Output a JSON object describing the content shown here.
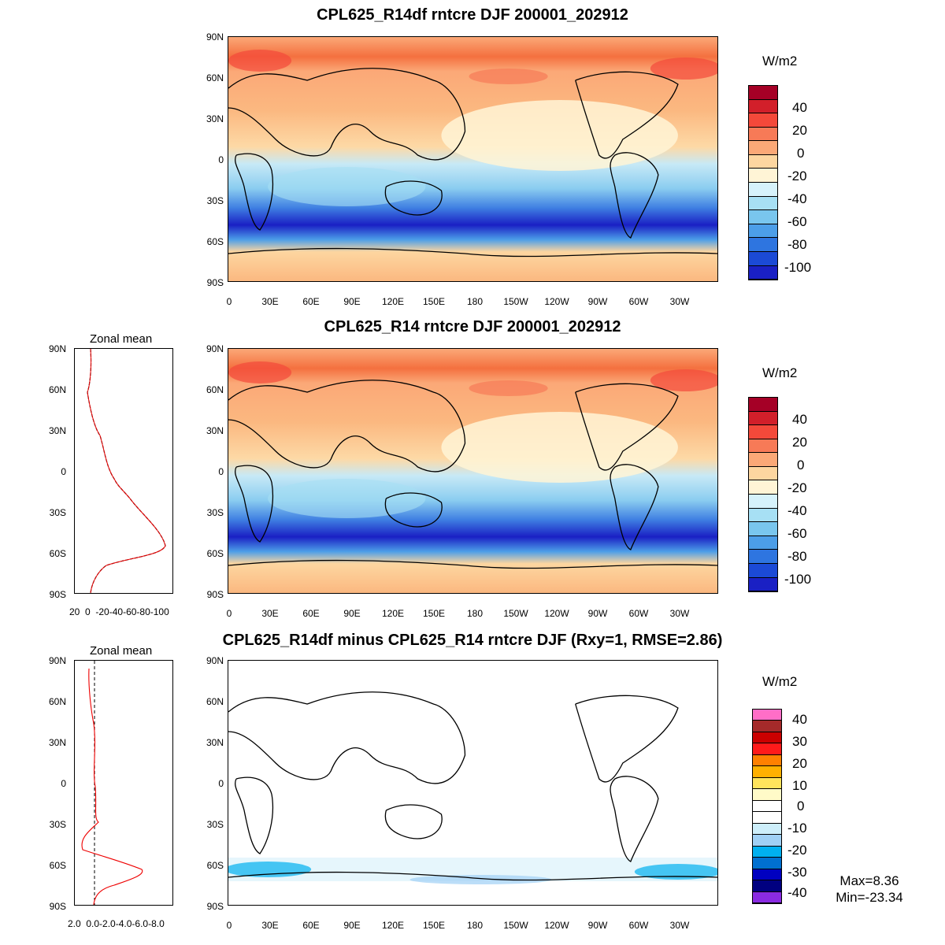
{
  "panels": [
    {
      "title": "CPL625_R14df rntcre DJF 200001_202912",
      "colorbar": {
        "unit": "W/m2",
        "labels": [
          "40",
          "20",
          "0",
          "-20",
          "-40",
          "-60",
          "-80",
          "-100"
        ]
      }
    },
    {
      "title": "CPL625_R14 rntcre DJF 200001_202912",
      "colorbar": {
        "unit": "W/m2",
        "labels": [
          "40",
          "20",
          "0",
          "-20",
          "-40",
          "-60",
          "-80",
          "-100"
        ]
      },
      "zonal": {
        "title": "Zonal mean",
        "xticks": [
          "20",
          "0",
          "-20",
          "-40",
          "-60",
          "-80",
          "-100"
        ]
      }
    },
    {
      "title": "CPL625_R14df minus CPL625_R14 rntcre DJF (Rxy=1, RMSE=2.86)",
      "colorbar": {
        "unit": "W/m2",
        "labels": [
          "40",
          "30",
          "20",
          "10",
          "0",
          "-10",
          "-20",
          "-30",
          "-40"
        ]
      },
      "zonal": {
        "title": "Zonal mean",
        "xticks": [
          "2.0",
          "0.0",
          "-2.0",
          "-4.0",
          "-6.0",
          "-8.0"
        ]
      },
      "stats": {
        "max": "Max=8.36",
        "min": "Min=-23.34"
      }
    }
  ],
  "axes": {
    "lat_ticks": [
      "90N",
      "60N",
      "30N",
      "0",
      "30S",
      "60S",
      "90S"
    ],
    "lon_ticks": [
      "0",
      "30E",
      "60E",
      "90E",
      "120E",
      "150E",
      "180",
      "150W",
      "120W",
      "90W",
      "60W",
      "30W"
    ]
  },
  "colors": {
    "full_scale": [
      "#a50026",
      "#d21f2a",
      "#f4493a",
      "#f77a57",
      "#fba877",
      "#fdd6a0",
      "#fff4d6",
      "#d6f2fb",
      "#a7e0f4",
      "#79c6ee",
      "#4c9ee8",
      "#2e75e0",
      "#1b4ad6",
      "#1a20c4"
    ],
    "diff_scale": [
      "#ff6ec7",
      "#a52a2a",
      "#cc0000",
      "#ff1a1a",
      "#ff8000",
      "#ffb000",
      "#ffe45c",
      "#fffac8",
      "#ffffff",
      "#ffffff",
      "#cdeefa",
      "#a0d0f5",
      "#00b0f0",
      "#0070d0",
      "#0000c0",
      "#000080",
      "#8a2be2"
    ]
  }
}
